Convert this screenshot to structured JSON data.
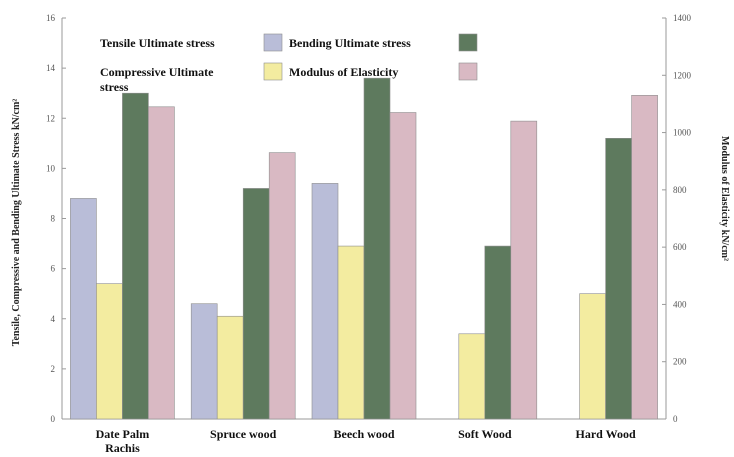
{
  "chart_data": {
    "type": "bar",
    "categories": [
      [
        "Date Palm",
        "Rachis"
      ],
      [
        "Spruce wood"
      ],
      [
        "Beech wood"
      ],
      [
        "Soft Wood"
      ],
      [
        "Hard Wood"
      ]
    ],
    "left_axis": {
      "label": "Tensile, Compressive and Bending Ultimate Stress kN/cm²",
      "ylim": [
        0,
        16
      ],
      "ticks": [
        0,
        2,
        4,
        6,
        8,
        10,
        12,
        14,
        16
      ],
      "tick_labels": [
        "0",
        "2",
        "4",
        "6",
        "8",
        "10",
        "12",
        "14",
        "16"
      ]
    },
    "right_axis": {
      "label": "Modulus of Elasticity kN/cm²",
      "ylim": [
        0,
        1400
      ],
      "ticks": [
        0,
        200,
        400,
        600,
        800,
        1000,
        1200,
        1400
      ],
      "tick_labels": [
        "0",
        "200",
        "400",
        "600",
        "800",
        "1000",
        "1200",
        "1400"
      ]
    },
    "series": [
      {
        "name": "Tensile Ultimate stress",
        "axis": "left",
        "color": "#b9bdd8",
        "values": [
          8.8,
          4.6,
          9.4,
          null,
          null
        ]
      },
      {
        "name": "Compressive Ultimate stress",
        "axis": "left",
        "color": "#f3eca0",
        "values": [
          5.4,
          4.1,
          6.9,
          3.4,
          5.0
        ]
      },
      {
        "name": "Bending Ultimate stress",
        "axis": "left",
        "color": "#5e7a5e",
        "values": [
          13.0,
          9.2,
          13.6,
          6.9,
          11.2
        ]
      },
      {
        "name": "Modulus of Elasticity",
        "axis": "right",
        "color": "#d9b9c3",
        "values": [
          1090,
          930,
          1070,
          1040,
          1130
        ]
      }
    ],
    "legend": {
      "placement": "top-left",
      "rows": [
        [
          {
            "series": 0,
            "text": [
              "Tensile Ultimate stress"
            ]
          },
          {
            "series": 2,
            "text": [
              "Bending Ultimate stress"
            ]
          }
        ],
        [
          {
            "series": 1,
            "text": [
              "Compressive Ultimate",
              "stress"
            ]
          },
          {
            "series": 3,
            "text": [
              "Modulus of Elasticity"
            ]
          }
        ]
      ]
    },
    "grid": false
  }
}
